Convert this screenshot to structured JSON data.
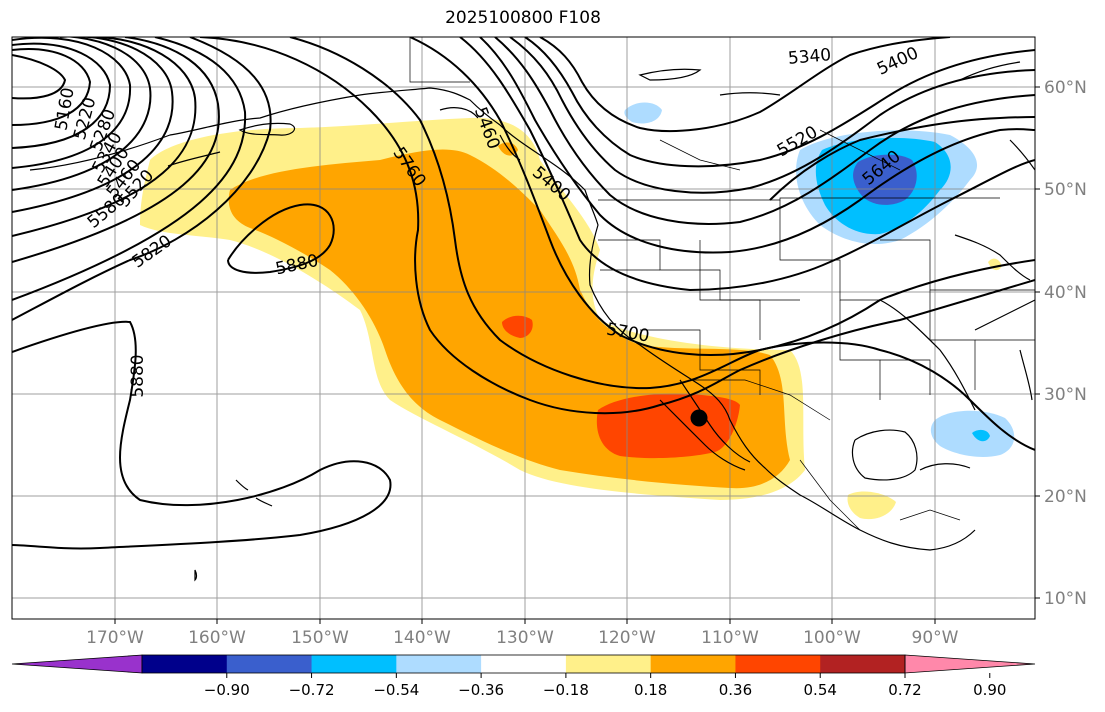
{
  "title": "2025100800 F108",
  "map": {
    "lon_labels": [
      "170°W",
      "160°W",
      "150°W",
      "140°W",
      "130°W",
      "120°W",
      "110°W",
      "100°W",
      "90°W"
    ],
    "lat_labels": [
      "60°N",
      "50°N",
      "40°N",
      "30°N",
      "20°N",
      "10°N"
    ],
    "contour_labels": [
      "5160",
      "5220",
      "5280",
      "5340",
      "5400",
      "5460",
      "5520",
      "5580",
      "5640",
      "5700",
      "5760",
      "5820",
      "5880",
      "5880",
      "5340",
      "5400",
      "5520",
      "5640",
      "5700",
      "5760",
      "5820",
      "5880",
      "5400",
      "5460",
      "5580"
    ],
    "fill_colors": {
      "weak_pos": "#fff08a",
      "mid_pos": "#ffa500",
      "strong_pos": "#ff4500",
      "weak_neg": "#aedcff",
      "mid_neg": "#00bfff",
      "strong_neg": "#3a5fcd"
    },
    "marker": "black-dot"
  },
  "colorbar": {
    "ticks": [
      "−0.90",
      "−0.72",
      "−0.54",
      "−0.36",
      "−0.18",
      "0.18",
      "0.36",
      "0.54",
      "0.72",
      "0.90"
    ],
    "colors": [
      "#9932cc",
      "#00008b",
      "#3a5fcd",
      "#00bfff",
      "#aedcff",
      "#ffffff",
      "#fff08a",
      "#ffa500",
      "#ff4500",
      "#b22222",
      "#ff88aa"
    ]
  }
}
